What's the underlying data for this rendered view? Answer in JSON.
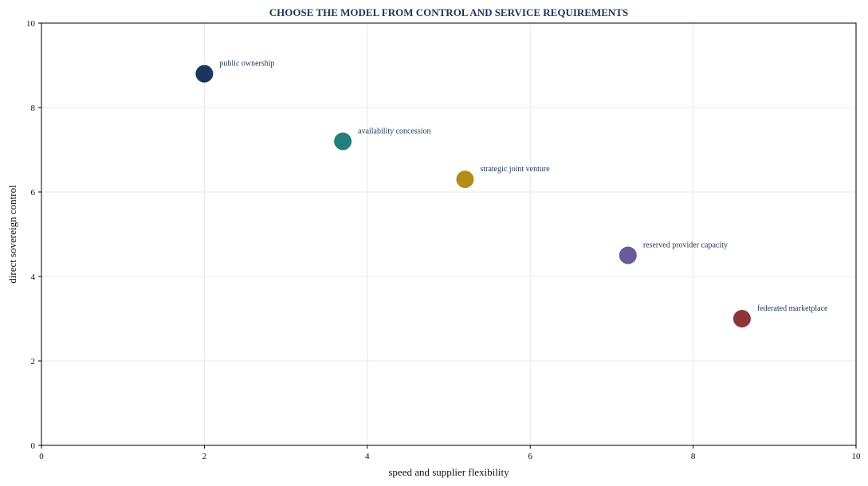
{
  "chart_data": {
    "type": "scatter",
    "title": "CHOOSE THE MODEL FROM CONTROL AND SERVICE REQUIREMENTS",
    "xlabel": "speed and supplier flexibility",
    "ylabel": "direct sovereign control",
    "xlim": [
      0,
      10
    ],
    "ylim": [
      0,
      10
    ],
    "xticks": [
      0,
      2,
      4,
      6,
      8,
      10
    ],
    "yticks": [
      0,
      2,
      4,
      6,
      8,
      10
    ],
    "grid": true,
    "points": [
      {
        "label": "public ownership",
        "x": 2.0,
        "y": 8.8,
        "color": "#1b365d"
      },
      {
        "label": "availability concession",
        "x": 3.7,
        "y": 7.2,
        "color": "#237f7a"
      },
      {
        "label": "strategic joint venture",
        "x": 5.2,
        "y": 6.3,
        "color": "#b38c1a"
      },
      {
        "label": "reserved provider capacity",
        "x": 7.2,
        "y": 4.5,
        "color": "#6a5a9a"
      },
      {
        "label": "federated marketplace",
        "x": 8.6,
        "y": 3.0,
        "color": "#8e3538"
      }
    ]
  }
}
